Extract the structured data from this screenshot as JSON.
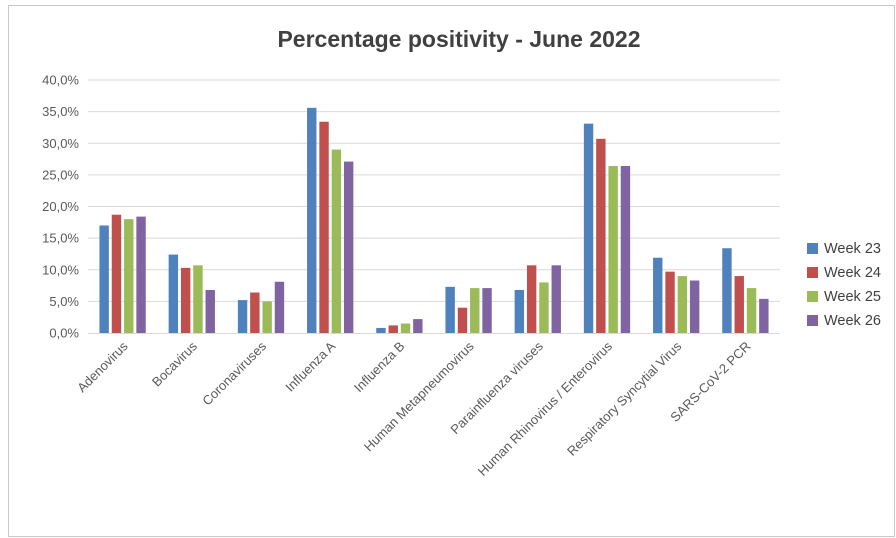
{
  "chart_data": {
    "type": "bar",
    "title": "Percentage positivity - June 2022",
    "xlabel": "",
    "ylabel": "",
    "ylim": [
      0,
      40
    ],
    "yticks": [
      "0,0%",
      "5,0%",
      "10,0%",
      "15,0%",
      "20,0%",
      "25,0%",
      "30,0%",
      "35,0%",
      "40,0%"
    ],
    "grid": true,
    "legend_position": "right",
    "categories": [
      "Adenovirus",
      "Bocavirus",
      "Coronaviruses",
      "Influenza A",
      "Influenza B",
      "Human Metapneumovirus",
      "Parainfluenza viruses",
      "Human Rhinovirus / Enterovirus",
      "Respiratory Syncytial Virus",
      "SARS-CoV-2 PCR"
    ],
    "series": [
      {
        "name": "Week 23",
        "color": "#4F81BD",
        "values": [
          17.0,
          12.4,
          5.2,
          35.6,
          0.8,
          7.3,
          6.8,
          33.1,
          11.9,
          13.4
        ]
      },
      {
        "name": "Week 24",
        "color": "#C0504D",
        "values": [
          18.7,
          10.3,
          6.4,
          33.4,
          1.2,
          4.0,
          10.7,
          30.7,
          9.7,
          9.0
        ]
      },
      {
        "name": "Week 25",
        "color": "#9BBB59",
        "values": [
          18.0,
          10.7,
          5.0,
          29.0,
          1.5,
          7.1,
          8.0,
          26.4,
          9.0,
          7.1
        ]
      },
      {
        "name": "Week 26",
        "color": "#8064A2",
        "values": [
          18.4,
          6.8,
          8.1,
          27.1,
          2.2,
          7.1,
          10.7,
          26.4,
          8.3,
          5.4
        ]
      }
    ]
  }
}
